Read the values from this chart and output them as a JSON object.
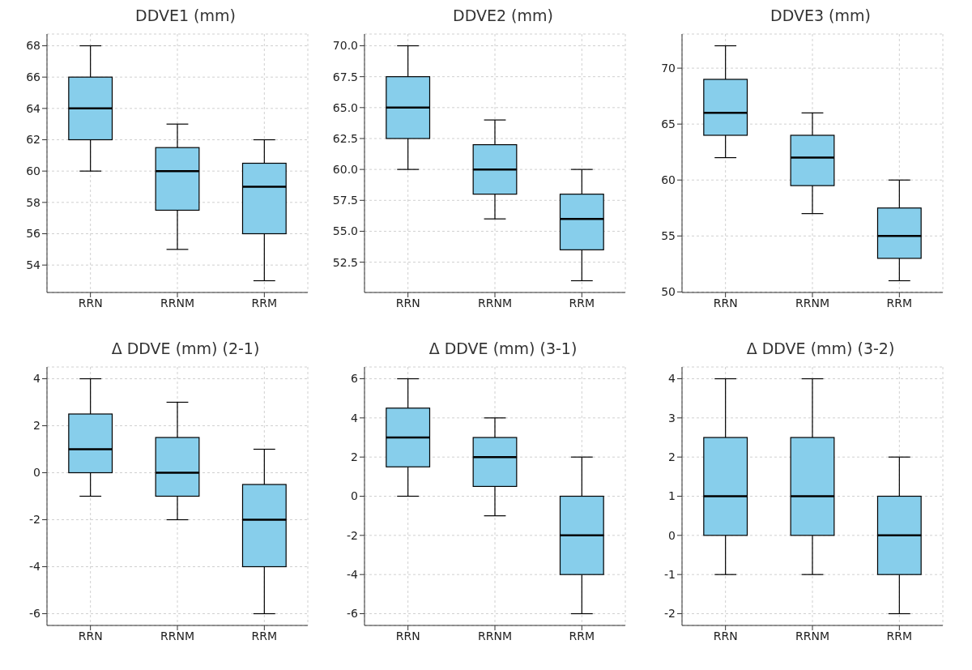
{
  "chart_data": [
    {
      "type": "box",
      "title": "DDVE1 (mm)",
      "categories": [
        "RRN",
        "RRNM",
        "RRM"
      ],
      "color": "#87ceeb",
      "grid": true,
      "ylim": [
        52.25,
        68.75
      ],
      "yticks": [
        54,
        56,
        58,
        60,
        62,
        64,
        66,
        68
      ],
      "boxes": [
        {
          "low": 60,
          "q1": 62,
          "median": 64,
          "q3": 66,
          "high": 68
        },
        {
          "low": 55,
          "q1": 57.5,
          "median": 60,
          "q3": 61.5,
          "high": 63
        },
        {
          "low": 53,
          "q1": 56,
          "median": 59,
          "q3": 60.5,
          "high": 62
        }
      ]
    },
    {
      "type": "box",
      "title": "DDVE2 (mm)",
      "categories": [
        "RRN",
        "RRNM",
        "RRM"
      ],
      "color": "#87ceeb",
      "grid": true,
      "ylim": [
        50.05,
        70.95
      ],
      "yticks": [
        52.5,
        {
          "value": 55,
          "label": "55.0"
        },
        57.5,
        {
          "value": 60,
          "label": "60.0"
        },
        62.5,
        {
          "value": 65,
          "label": "65.0"
        },
        67.5,
        {
          "value": 70,
          "label": "70.0"
        }
      ],
      "boxes": [
        {
          "low": 60,
          "q1": 62.5,
          "median": 65,
          "q3": 67.5,
          "high": 70
        },
        {
          "low": 56,
          "q1": 58,
          "median": 60,
          "q3": 62,
          "high": 64
        },
        {
          "low": 51,
          "q1": 53.5,
          "median": 56,
          "q3": 58,
          "high": 60
        }
      ]
    },
    {
      "type": "box",
      "title": "DDVE3 (mm)",
      "categories": [
        "RRN",
        "RRNM",
        "RRM"
      ],
      "color": "#87ceeb",
      "grid": true,
      "ylim": [
        49.95,
        73.05
      ],
      "yticks": [
        50,
        55,
        60,
        65,
        70
      ],
      "boxes": [
        {
          "low": 62,
          "q1": 64,
          "median": 66,
          "q3": 69,
          "high": 72
        },
        {
          "low": 57,
          "q1": 59.5,
          "median": 62,
          "q3": 64,
          "high": 66
        },
        {
          "low": 51,
          "q1": 53,
          "median": 55,
          "q3": 57.5,
          "high": 60
        }
      ]
    },
    {
      "type": "box",
      "title": "Δ DDVE (mm) (2-1)",
      "categories": [
        "RRN",
        "RRNM",
        "RRM"
      ],
      "color": "#87ceeb",
      "grid": true,
      "ylim": [
        -6.5,
        4.5
      ],
      "yticks": [
        -6,
        -4,
        -2,
        0,
        2,
        4
      ],
      "boxes": [
        {
          "low": -1,
          "q1": 0,
          "median": 1,
          "q3": 2.5,
          "high": 4
        },
        {
          "low": -2,
          "q1": -1,
          "median": 0,
          "q3": 1.5,
          "high": 3
        },
        {
          "low": -6,
          "q1": -4,
          "median": -2,
          "q3": -0.5,
          "high": 1
        }
      ]
    },
    {
      "type": "box",
      "title": "Δ DDVE (mm) (3-1)",
      "categories": [
        "RRN",
        "RRNM",
        "RRM"
      ],
      "color": "#87ceeb",
      "grid": true,
      "ylim": [
        -6.6,
        6.6
      ],
      "yticks": [
        -6,
        -4,
        -2,
        0,
        2,
        4,
        6
      ],
      "boxes": [
        {
          "low": 0,
          "q1": 1.5,
          "median": 3,
          "q3": 4.5,
          "high": 6
        },
        {
          "low": -1,
          "q1": 0.5,
          "median": 2,
          "q3": 3,
          "high": 4
        },
        {
          "low": -6,
          "q1": -4,
          "median": -2,
          "q3": 0,
          "high": 2
        }
      ]
    },
    {
      "type": "box",
      "title": "Δ DDVE (mm) (3-2)",
      "categories": [
        "RRN",
        "RRNM",
        "RRM"
      ],
      "color": "#87ceeb",
      "grid": true,
      "ylim": [
        -2.3,
        4.3
      ],
      "yticks": [
        -2,
        -1,
        0,
        1,
        2,
        3,
        4
      ],
      "boxes": [
        {
          "low": -1,
          "q1": 0,
          "median": 1,
          "q3": 2.5,
          "high": 4
        },
        {
          "low": -1,
          "q1": 0,
          "median": 1,
          "q3": 2.5,
          "high": 4
        },
        {
          "low": -2,
          "q1": -1,
          "median": 0,
          "q3": 1,
          "high": 2
        }
      ]
    }
  ]
}
